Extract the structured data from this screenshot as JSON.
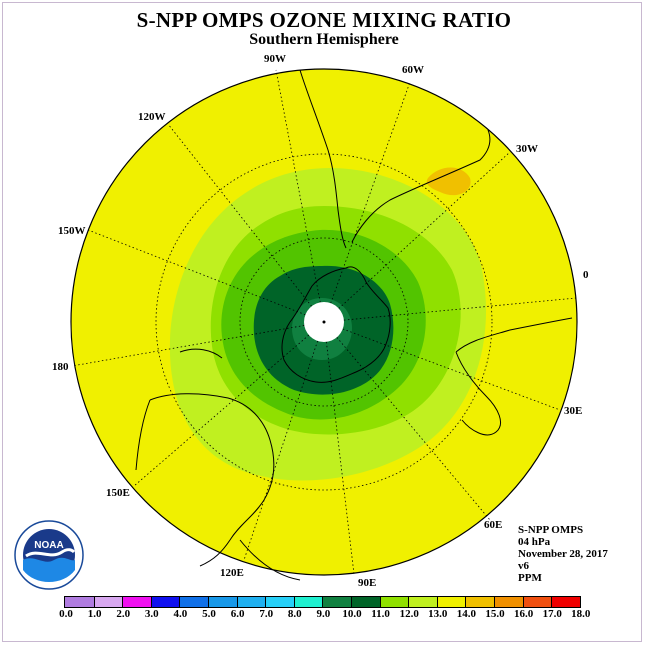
{
  "title": "S-NPP OMPS OZONE MIXING RATIO",
  "subtitle": "Southern Hemisphere",
  "longitude_labels": [
    "90W",
    "60W",
    "30W",
    "0",
    "30E",
    "60E",
    "90E",
    "120E",
    "150E",
    "180",
    "150W",
    "120W"
  ],
  "info": {
    "instrument": "S-NPP OMPS",
    "level": "04 hPa",
    "date": "November 28, 2017",
    "version": "v6",
    "units": "PPM"
  },
  "colorbar": {
    "ticks": [
      "0.0",
      "1.0",
      "2.0",
      "3.0",
      "4.0",
      "5.0",
      "6.0",
      "7.0",
      "8.0",
      "9.0",
      "10.0",
      "11.0",
      "12.0",
      "13.0",
      "14.0",
      "15.0",
      "16.0",
      "17.0",
      "18.0"
    ],
    "colors": [
      "#b07ce0",
      "#d8a8f0",
      "#f010f0",
      "#1010f0",
      "#1070e8",
      "#1898e8",
      "#20b0f0",
      "#28d0f8",
      "#20f0d0",
      "#108040",
      "#006428",
      "#90e000",
      "#c0f020",
      "#f0f000",
      "#f0c000",
      "#f09000",
      "#f05010",
      "#f00000",
      "#905030"
    ]
  },
  "logo_text": "NOAA",
  "map_data": {
    "projection": "south-polar stereographic",
    "field_bands_ppm": [
      "9.0-10.0",
      "10.0-11.0",
      "11.0-12.0",
      "12.0-13.0",
      "13.0-14.0"
    ]
  }
}
